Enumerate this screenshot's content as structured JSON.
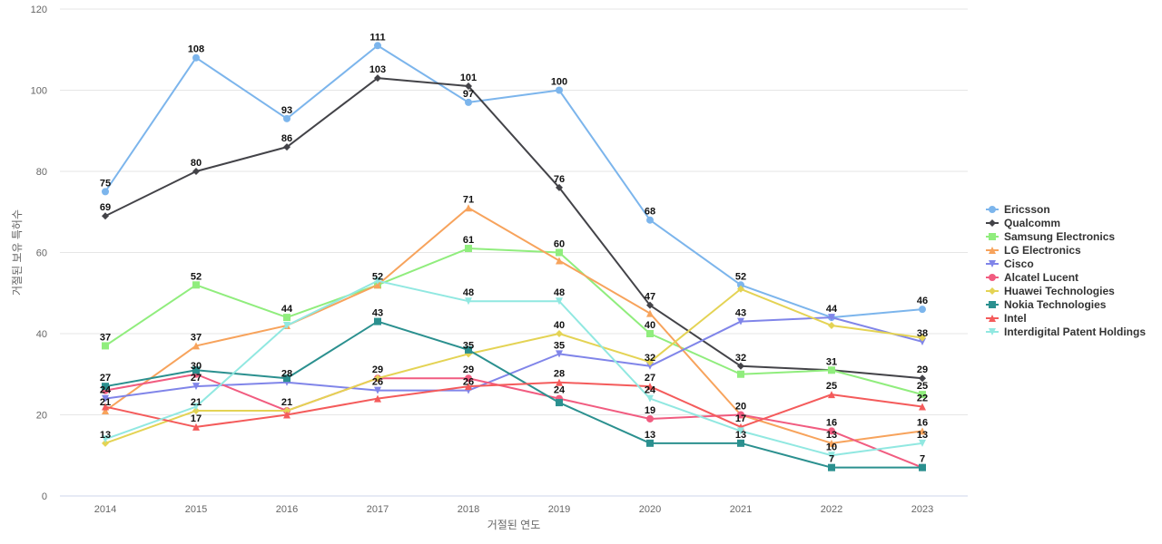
{
  "chart_data": {
    "type": "line",
    "xlabel": "거절된 연도",
    "ylabel": "거절된 보유 특허수",
    "ylim": [
      0,
      120
    ],
    "yticks": [
      0,
      20,
      40,
      60,
      80,
      100,
      120
    ],
    "grid": true,
    "legend_position": "right",
    "categories": [
      "2014",
      "2015",
      "2016",
      "2017",
      "2018",
      "2019",
      "2020",
      "2021",
      "2022",
      "2023"
    ],
    "series": [
      {
        "name": "Ericsson",
        "color": "#7cb5ec",
        "marker": "circle",
        "values": [
          75,
          108,
          93,
          111,
          97,
          100,
          68,
          52,
          44,
          46
        ]
      },
      {
        "name": "Qualcomm",
        "color": "#434348",
        "marker": "diamond",
        "values": [
          69,
          80,
          86,
          103,
          101,
          76,
          47,
          32,
          31,
          29
        ]
      },
      {
        "name": "Samsung Electronics",
        "color": "#90ed7d",
        "marker": "square",
        "values": [
          37,
          52,
          44,
          52,
          61,
          60,
          40,
          30,
          31,
          25
        ]
      },
      {
        "name": "LG Electronics",
        "color": "#f7a35c",
        "marker": "triangle",
        "values": [
          21,
          37,
          42,
          52,
          71,
          58,
          45,
          20,
          13,
          16
        ]
      },
      {
        "name": "Cisco",
        "color": "#8085e9",
        "marker": "triangle-down",
        "values": [
          24,
          27,
          28,
          26,
          26,
          35,
          32,
          43,
          44,
          38
        ]
      },
      {
        "name": "Alcatel Lucent",
        "color": "#f15c80",
        "marker": "circle",
        "values": [
          26,
          30,
          21,
          29,
          29,
          24,
          19,
          20,
          16,
          7
        ]
      },
      {
        "name": "Huawei Technologies",
        "color": "#e4d354",
        "marker": "diamond",
        "values": [
          13,
          21,
          21,
          29,
          35,
          40,
          33,
          51,
          42,
          39
        ]
      },
      {
        "name": "Nokia Technologies",
        "color": "#2b908f",
        "marker": "square",
        "values": [
          27,
          31,
          29,
          43,
          36,
          23,
          13,
          13,
          7,
          7
        ]
      },
      {
        "name": "Intel",
        "color": "#f45b5b",
        "marker": "triangle",
        "values": [
          22,
          17,
          20,
          24,
          27,
          28,
          27,
          17,
          25,
          22
        ]
      },
      {
        "name": "Interdigital Patent Holdings",
        "color": "#91e8e1",
        "marker": "triangle-down",
        "values": [
          14,
          22,
          42,
          53,
          48,
          48,
          24,
          16,
          10,
          13
        ]
      }
    ],
    "data_labels": [
      {
        "category": "2014",
        "value": 75,
        "text": "75"
      },
      {
        "category": "2014",
        "value": 69,
        "text": "69"
      },
      {
        "category": "2014",
        "value": 37,
        "text": "37"
      },
      {
        "category": "2014",
        "value": 27,
        "text": "27"
      },
      {
        "category": "2014",
        "value": 24,
        "text": "24"
      },
      {
        "category": "2014",
        "value": 21,
        "text": "21"
      },
      {
        "category": "2014",
        "value": 13,
        "text": "13"
      },
      {
        "category": "2015",
        "value": 108,
        "text": "108"
      },
      {
        "category": "2015",
        "value": 80,
        "text": "80"
      },
      {
        "category": "2015",
        "value": 52,
        "text": "52"
      },
      {
        "category": "2015",
        "value": 37,
        "text": "37"
      },
      {
        "category": "2015",
        "value": 30,
        "text": "30"
      },
      {
        "category": "2015",
        "value": 27,
        "text": "27"
      },
      {
        "category": "2015",
        "value": 21,
        "text": "21"
      },
      {
        "category": "2015",
        "value": 17,
        "text": "17"
      },
      {
        "category": "2016",
        "value": 93,
        "text": "93"
      },
      {
        "category": "2016",
        "value": 86,
        "text": "86"
      },
      {
        "category": "2016",
        "value": 44,
        "text": "44"
      },
      {
        "category": "2016",
        "value": 28,
        "text": "28"
      },
      {
        "category": "2016",
        "value": 21,
        "text": "21"
      },
      {
        "category": "2017",
        "value": 111,
        "text": "111"
      },
      {
        "category": "2017",
        "value": 103,
        "text": "103"
      },
      {
        "category": "2017",
        "value": 52,
        "text": "52"
      },
      {
        "category": "2017",
        "value": 43,
        "text": "43"
      },
      {
        "category": "2017",
        "value": 29,
        "text": "29"
      },
      {
        "category": "2017",
        "value": 26,
        "text": "26"
      },
      {
        "category": "2018",
        "value": 101,
        "text": "101"
      },
      {
        "category": "2018",
        "value": 97,
        "text": "97"
      },
      {
        "category": "2018",
        "value": 71,
        "text": "71"
      },
      {
        "category": "2018",
        "value": 61,
        "text": "61"
      },
      {
        "category": "2018",
        "value": 48,
        "text": "48"
      },
      {
        "category": "2018",
        "value": 35,
        "text": "35"
      },
      {
        "category": "2018",
        "value": 29,
        "text": "29"
      },
      {
        "category": "2018",
        "value": 26,
        "text": "26"
      },
      {
        "category": "2019",
        "value": 100,
        "text": "100"
      },
      {
        "category": "2019",
        "value": 76,
        "text": "76"
      },
      {
        "category": "2019",
        "value": 60,
        "text": "60"
      },
      {
        "category": "2019",
        "value": 48,
        "text": "48"
      },
      {
        "category": "2019",
        "value": 40,
        "text": "40"
      },
      {
        "category": "2019",
        "value": 35,
        "text": "35"
      },
      {
        "category": "2019",
        "value": 28,
        "text": "28"
      },
      {
        "category": "2019",
        "value": 24,
        "text": "24"
      },
      {
        "category": "2020",
        "value": 68,
        "text": "68"
      },
      {
        "category": "2020",
        "value": 47,
        "text": "47"
      },
      {
        "category": "2020",
        "value": 40,
        "text": "40"
      },
      {
        "category": "2020",
        "value": 32,
        "text": "32"
      },
      {
        "category": "2020",
        "value": 27,
        "text": "27"
      },
      {
        "category": "2020",
        "value": 24,
        "text": "24"
      },
      {
        "category": "2020",
        "value": 19,
        "text": "19"
      },
      {
        "category": "2020",
        "value": 13,
        "text": "13"
      },
      {
        "category": "2021",
        "value": 52,
        "text": "52"
      },
      {
        "category": "2021",
        "value": 43,
        "text": "43"
      },
      {
        "category": "2021",
        "value": 32,
        "text": "32"
      },
      {
        "category": "2021",
        "value": 20,
        "text": "20"
      },
      {
        "category": "2021",
        "value": 17,
        "text": "17"
      },
      {
        "category": "2021",
        "value": 13,
        "text": "13"
      },
      {
        "category": "2022",
        "value": 44,
        "text": "44"
      },
      {
        "category": "2022",
        "value": 31,
        "text": "31"
      },
      {
        "category": "2022",
        "value": 25,
        "text": "25"
      },
      {
        "category": "2022",
        "value": 16,
        "text": "16"
      },
      {
        "category": "2022",
        "value": 13,
        "text": "13"
      },
      {
        "category": "2022",
        "value": 10,
        "text": "10"
      },
      {
        "category": "2022",
        "value": 7,
        "text": "7"
      },
      {
        "category": "2023",
        "value": 46,
        "text": "46"
      },
      {
        "category": "2023",
        "value": 38,
        "text": "38"
      },
      {
        "category": "2023",
        "value": 29,
        "text": "29"
      },
      {
        "category": "2023",
        "value": 25,
        "text": "25"
      },
      {
        "category": "2023",
        "value": 22,
        "text": "22"
      },
      {
        "category": "2023",
        "value": 16,
        "text": "16"
      },
      {
        "category": "2023",
        "value": 13,
        "text": "13"
      },
      {
        "category": "2023",
        "value": 7,
        "text": "7"
      }
    ]
  }
}
